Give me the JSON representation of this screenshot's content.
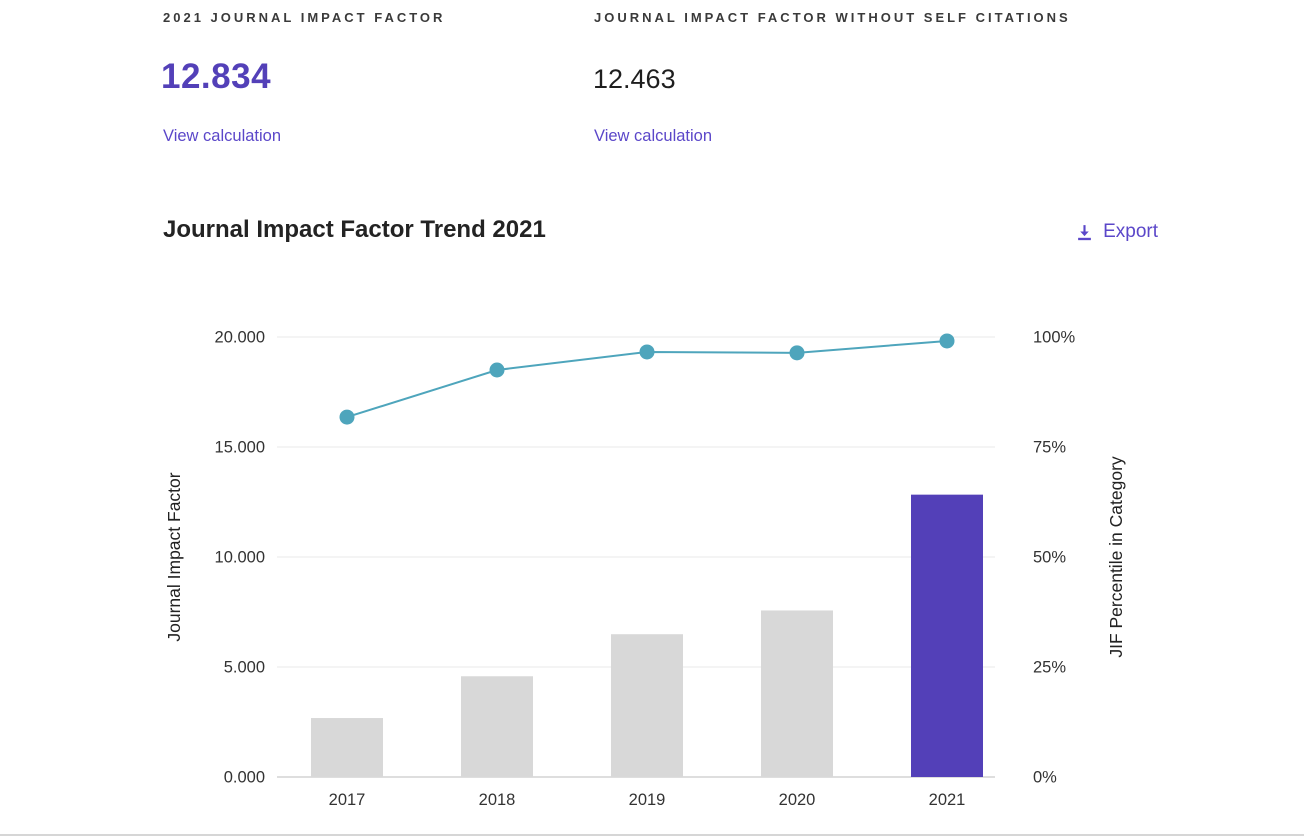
{
  "metrics": {
    "jif": {
      "label": "2021 JOURNAL IMPACT FACTOR",
      "value": "12.834",
      "link_label": "View calculation"
    },
    "jif_without_self": {
      "label": "JOURNAL IMPACT FACTOR WITHOUT SELF CITATIONS",
      "value": "12.463",
      "link_label": "View calculation"
    }
  },
  "trend_section": {
    "title": "Journal Impact Factor Trend 2021",
    "export_label": "Export"
  },
  "colors": {
    "accent_purple": "#5340b8",
    "link_purple": "#5b47c9",
    "heading_text": "#232323",
    "label_text": "#3a3a3a",
    "line_teal": "#4ea5bc",
    "bar_gray": "#d8d8d8"
  },
  "chart_data": {
    "type": "bar",
    "subtype": "combo-bar-line-dual-axis",
    "title": "Journal Impact Factor Trend 2021",
    "categories": [
      "2017",
      "2018",
      "2019",
      "2020",
      "2021"
    ],
    "series": [
      {
        "name": "Journal Impact Factor",
        "type": "bar",
        "axis": "left",
        "values": [
          2.68,
          4.58,
          6.49,
          7.57,
          12.834
        ]
      },
      {
        "name": "JIF Percentile in Category",
        "type": "line",
        "axis": "right",
        "values": [
          81.8,
          92.5,
          96.6,
          96.4,
          99.1
        ]
      }
    ],
    "left_axis": {
      "label": "Journal Impact Factor",
      "min": 0,
      "max": 20,
      "ticks": [
        "0.000",
        "5.000",
        "10.000",
        "15.000",
        "20.000"
      ]
    },
    "right_axis": {
      "label": "JIF Percentile in Category",
      "min": 0,
      "max": 100,
      "ticks": [
        "0%",
        "25%",
        "50%",
        "75%",
        "100%"
      ]
    },
    "highlight_category": "2021",
    "bar_color": "#d8d8d8",
    "highlight_bar_color": "#5340b8",
    "line_color": "#4ea5bc",
    "grid": true,
    "legend": "none"
  }
}
